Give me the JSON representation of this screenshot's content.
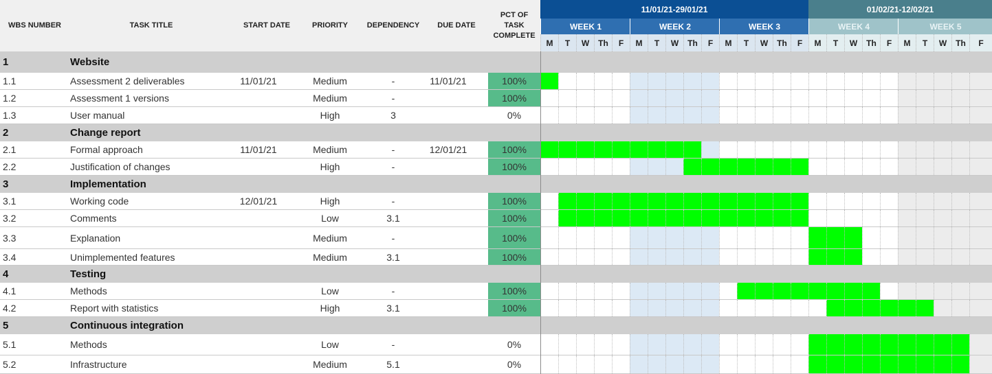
{
  "headers": {
    "wbs": "WBS NUMBER",
    "task_title": "TASK TITLE",
    "start_date": "START DATE",
    "priority": "PRIORITY",
    "dependency": "DEPENDENCY",
    "due_date": "DUE DATE",
    "pct": [
      "PCT OF",
      "TASK",
      "COMPLETE"
    ]
  },
  "periods": [
    {
      "label": "11/01/21-29/01/21",
      "color": "#0b4f94"
    },
    {
      "label": "01/02/21-12/02/21",
      "color": "#4a7f8c"
    }
  ],
  "weeks": [
    {
      "label": "WEEK 1",
      "bg": "#2f6fb1",
      "fg": "#ffffff"
    },
    {
      "label": "WEEK 2",
      "bg": "#2f6fb1",
      "fg": "#ffffff"
    },
    {
      "label": "WEEK 3",
      "bg": "#2f6fb1",
      "fg": "#ffffff"
    },
    {
      "label": "WEEK 4",
      "bg": "#9fc3c9",
      "fg": "#e8f3f5"
    },
    {
      "label": "WEEK 5",
      "bg": "#9fc3c9",
      "fg": "#e8f3f5"
    }
  ],
  "days": [
    "M",
    "T",
    "W",
    "Th",
    "F",
    "M",
    "T",
    "W",
    "Th",
    "F",
    "M",
    "T",
    "W",
    "Th",
    "F",
    "M",
    "T",
    "W",
    "Th",
    "F",
    "M",
    "T",
    "W",
    "Th",
    "F"
  ],
  "colors": {
    "bar": "#00ff00",
    "pct_done": "#57bb8a",
    "section_bg": "#cfcfcf",
    "week2_shade": "#dce9f5",
    "week5_shade": "#ececec"
  },
  "rows": [
    {
      "type": "section",
      "wbs": "1",
      "title": "Website"
    },
    {
      "type": "task",
      "wbs": "1.1",
      "title": "Assessment 2 deliverables",
      "start": "11/01/21",
      "priority": "Medium",
      "dependency": "-",
      "due": "11/01/21",
      "pct": "100%",
      "bar": [
        0,
        1
      ]
    },
    {
      "type": "task",
      "wbs": "1.2",
      "title": "Assessment 1 versions",
      "start": "",
      "priority": "Medium",
      "dependency": "-",
      "due": "",
      "pct": "100%",
      "bar": null
    },
    {
      "type": "task",
      "wbs": "1.3",
      "title": "User manual",
      "start": "",
      "priority": "High",
      "dependency": "3",
      "due": "",
      "pct": "0%",
      "bar": null
    },
    {
      "type": "section",
      "wbs": "2",
      "title": "Change report"
    },
    {
      "type": "task",
      "wbs": "2.1",
      "title": "Formal approach",
      "start": "11/01/21",
      "priority": "Medium",
      "dependency": "-",
      "due": "12/01/21",
      "pct": "100%",
      "bar": [
        0,
        9
      ]
    },
    {
      "type": "task",
      "wbs": "2.2",
      "title": "Justification of changes",
      "start": "",
      "priority": "High",
      "dependency": "-",
      "due": "",
      "pct": "100%",
      "bar": [
        8,
        15
      ]
    },
    {
      "type": "section",
      "wbs": "3",
      "title": "Implementation"
    },
    {
      "type": "task",
      "wbs": "3.1",
      "title": "Working code",
      "start": "12/01/21",
      "priority": "High",
      "dependency": "-",
      "due": "",
      "pct": "100%",
      "bar": [
        1,
        15
      ]
    },
    {
      "type": "task",
      "wbs": "3.2",
      "title": "Comments",
      "start": "",
      "priority": "Low",
      "dependency": "3.1",
      "due": "",
      "pct": "100%",
      "bar": [
        1,
        15
      ]
    },
    {
      "type": "task",
      "wbs": "3.3",
      "title": "Explanation",
      "start": "",
      "priority": "Medium",
      "dependency": "-",
      "due": "",
      "pct": "100%",
      "bar": [
        15,
        18
      ]
    },
    {
      "type": "task",
      "wbs": "3.4",
      "title": "Unimplemented features",
      "start": "",
      "priority": "Medium",
      "dependency": "3.1",
      "due": "",
      "pct": "100%",
      "bar": [
        15,
        18
      ]
    },
    {
      "type": "section",
      "wbs": "4",
      "title": "Testing"
    },
    {
      "type": "task",
      "wbs": "4.1",
      "title": "Methods",
      "start": "",
      "priority": "Low",
      "dependency": "-",
      "due": "",
      "pct": "100%",
      "bar": [
        11,
        19
      ]
    },
    {
      "type": "task",
      "wbs": "4.2",
      "title": "Report with statistics",
      "start": "",
      "priority": "High",
      "dependency": "3.1",
      "due": "",
      "pct": "100%",
      "bar": [
        16,
        22
      ]
    },
    {
      "type": "section",
      "wbs": "5",
      "title": "Continuous integration"
    },
    {
      "type": "task",
      "wbs": "5.1",
      "title": "Methods",
      "start": "",
      "priority": "Low",
      "dependency": "-",
      "due": "",
      "pct": "0%",
      "bar": [
        15,
        24
      ]
    },
    {
      "type": "task",
      "wbs": "5.2",
      "title": "Infrastructure",
      "start": "",
      "priority": "Medium",
      "dependency": "5.1",
      "due": "",
      "pct": "0%",
      "bar": [
        15,
        24
      ]
    }
  ]
}
